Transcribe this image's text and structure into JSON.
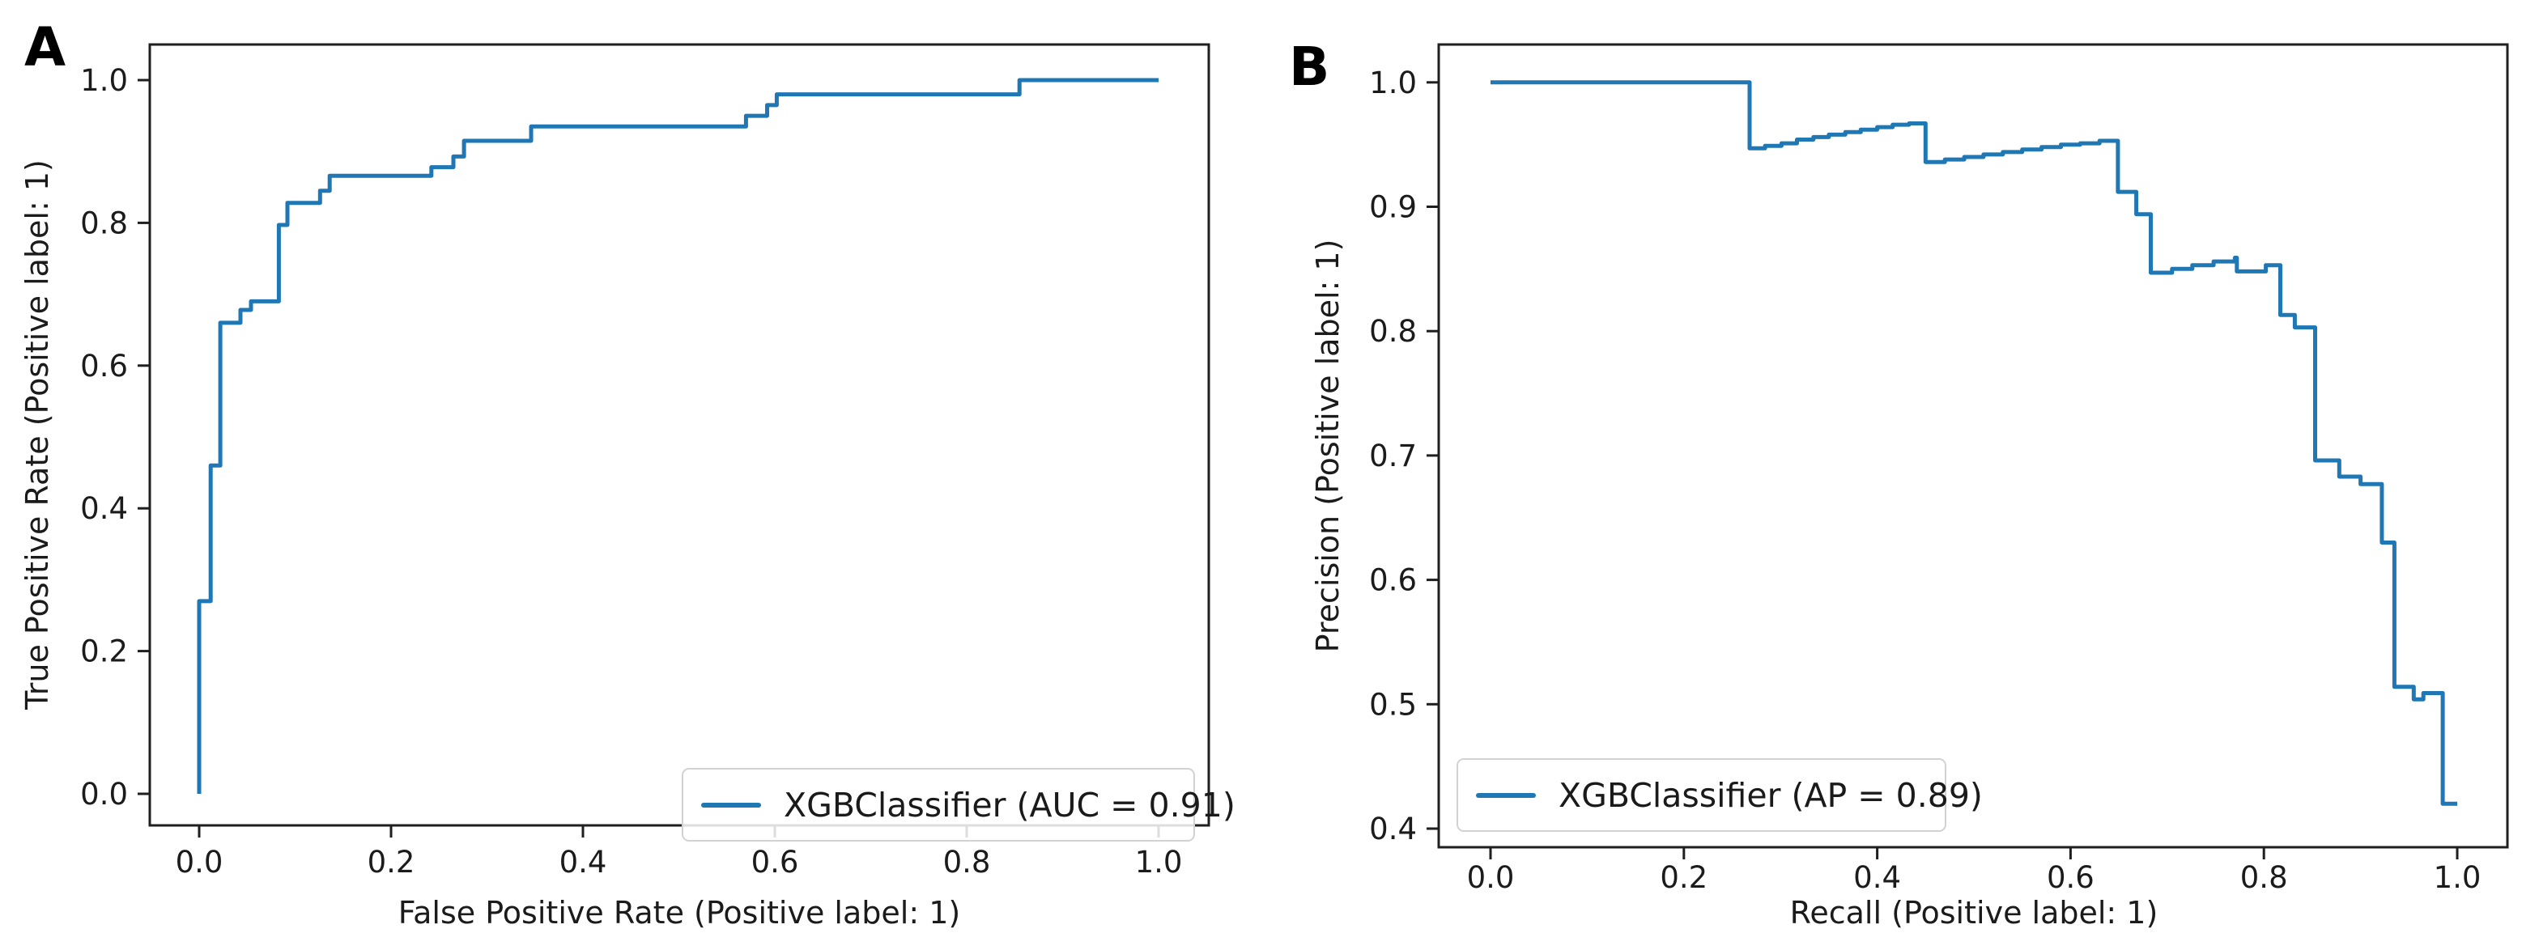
{
  "figure": {
    "background": "#ffffff",
    "panel_a_letter": "A",
    "panel_b_letter": "B"
  },
  "chart_data": [
    {
      "type": "line",
      "subtype": "roc-step-curve",
      "panel_label": "A",
      "title": "",
      "xlabel": "False Positive Rate (Positive label: 1)",
      "ylabel": "True Positive Rate (Positive label: 1)",
      "legend_label": "XGBClassifier (AUC = 0.91)",
      "classifier": "XGBClassifier",
      "metric_name": "AUC",
      "metric_value": 0.91,
      "color": "#1f77b4",
      "grid": "off",
      "legend_position": "lower right",
      "xlim": [
        -0.05,
        1.05
      ],
      "ylim": [
        -0.04,
        1.05
      ],
      "xticks": [
        0.0,
        0.2,
        0.4,
        0.6,
        0.8,
        1.0
      ],
      "xtick_labels": [
        "0.0",
        "0.2",
        "0.4",
        "0.6",
        "0.8",
        "1.0"
      ],
      "yticks": [
        0.0,
        0.2,
        0.4,
        0.6,
        0.8,
        1.0
      ],
      "ytick_labels": [
        "0.0",
        "0.2",
        "0.4",
        "0.6",
        "0.8",
        "1.0"
      ],
      "curve": [
        [
          0.0,
          0.0
        ],
        [
          0.0,
          0.27
        ],
        [
          0.012,
          0.27
        ],
        [
          0.012,
          0.46
        ],
        [
          0.022,
          0.46
        ],
        [
          0.022,
          0.66
        ],
        [
          0.043,
          0.66
        ],
        [
          0.043,
          0.678
        ],
        [
          0.054,
          0.678
        ],
        [
          0.054,
          0.69
        ],
        [
          0.083,
          0.69
        ],
        [
          0.083,
          0.797
        ],
        [
          0.092,
          0.797
        ],
        [
          0.092,
          0.828
        ],
        [
          0.126,
          0.828
        ],
        [
          0.126,
          0.845
        ],
        [
          0.136,
          0.845
        ],
        [
          0.136,
          0.866
        ],
        [
          0.242,
          0.866
        ],
        [
          0.242,
          0.878
        ],
        [
          0.265,
          0.878
        ],
        [
          0.265,
          0.893
        ],
        [
          0.276,
          0.893
        ],
        [
          0.276,
          0.915
        ],
        [
          0.346,
          0.915
        ],
        [
          0.346,
          0.935
        ],
        [
          0.57,
          0.935
        ],
        [
          0.57,
          0.95
        ],
        [
          0.592,
          0.95
        ],
        [
          0.592,
          0.965
        ],
        [
          0.602,
          0.965
        ],
        [
          0.602,
          0.98
        ],
        [
          0.855,
          0.98
        ],
        [
          0.855,
          1.0
        ],
        [
          1.0,
          1.0
        ]
      ]
    },
    {
      "type": "line",
      "subtype": "precision-recall-step-curve",
      "panel_label": "B",
      "title": "",
      "xlabel": "Recall (Positive label: 1)",
      "ylabel": "Precision (Positive label: 1)",
      "legend_label": "XGBClassifier (AP = 0.89)",
      "classifier": "XGBClassifier",
      "metric_name": "AP",
      "metric_value": 0.89,
      "color": "#1f77b4",
      "grid": "off",
      "legend_position": "lower left",
      "xlim": [
        -0.05,
        1.05
      ],
      "ylim": [
        0.385,
        1.03
      ],
      "xticks": [
        0.0,
        0.2,
        0.4,
        0.6,
        0.8,
        1.0
      ],
      "xtick_labels": [
        "0.0",
        "0.2",
        "0.4",
        "0.6",
        "0.8",
        "1.0"
      ],
      "yticks": [
        0.4,
        0.5,
        0.6,
        0.7,
        0.8,
        0.9,
        1.0
      ],
      "ytick_labels": [
        "0.4",
        "0.5",
        "0.6",
        "0.7",
        "0.8",
        "0.9",
        "1.0"
      ],
      "curve": [
        [
          0.0,
          1.0
        ],
        [
          0.268,
          1.0
        ],
        [
          0.268,
          0.947
        ],
        [
          0.284,
          0.947
        ],
        [
          0.284,
          0.949
        ],
        [
          0.301,
          0.949
        ],
        [
          0.301,
          0.951
        ],
        [
          0.317,
          0.951
        ],
        [
          0.317,
          0.954
        ],
        [
          0.334,
          0.954
        ],
        [
          0.334,
          0.956
        ],
        [
          0.35,
          0.956
        ],
        [
          0.35,
          0.958
        ],
        [
          0.367,
          0.958
        ],
        [
          0.367,
          0.96
        ],
        [
          0.383,
          0.96
        ],
        [
          0.383,
          0.962
        ],
        [
          0.4,
          0.962
        ],
        [
          0.4,
          0.964
        ],
        [
          0.416,
          0.964
        ],
        [
          0.416,
          0.966
        ],
        [
          0.433,
          0.966
        ],
        [
          0.433,
          0.967
        ],
        [
          0.45,
          0.967
        ],
        [
          0.45,
          0.936
        ],
        [
          0.47,
          0.936
        ],
        [
          0.47,
          0.938
        ],
        [
          0.49,
          0.938
        ],
        [
          0.49,
          0.94
        ],
        [
          0.51,
          0.94
        ],
        [
          0.51,
          0.942
        ],
        [
          0.53,
          0.942
        ],
        [
          0.53,
          0.944
        ],
        [
          0.55,
          0.944
        ],
        [
          0.55,
          0.946
        ],
        [
          0.57,
          0.946
        ],
        [
          0.57,
          0.948
        ],
        [
          0.59,
          0.948
        ],
        [
          0.59,
          0.95
        ],
        [
          0.61,
          0.95
        ],
        [
          0.61,
          0.951
        ],
        [
          0.63,
          0.951
        ],
        [
          0.63,
          0.953
        ],
        [
          0.649,
          0.953
        ],
        [
          0.649,
          0.912
        ],
        [
          0.668,
          0.912
        ],
        [
          0.668,
          0.894
        ],
        [
          0.683,
          0.894
        ],
        [
          0.683,
          0.847
        ],
        [
          0.705,
          0.847
        ],
        [
          0.705,
          0.85
        ],
        [
          0.726,
          0.85
        ],
        [
          0.726,
          0.853
        ],
        [
          0.748,
          0.853
        ],
        [
          0.748,
          0.856
        ],
        [
          0.77,
          0.856
        ],
        [
          0.77,
          0.859
        ],
        [
          0.772,
          0.859
        ],
        [
          0.772,
          0.848
        ],
        [
          0.802,
          0.848
        ],
        [
          0.802,
          0.853
        ],
        [
          0.817,
          0.853
        ],
        [
          0.817,
          0.813
        ],
        [
          0.832,
          0.813
        ],
        [
          0.832,
          0.803
        ],
        [
          0.853,
          0.803
        ],
        [
          0.853,
          0.696
        ],
        [
          0.878,
          0.696
        ],
        [
          0.878,
          0.683
        ],
        [
          0.9,
          0.683
        ],
        [
          0.9,
          0.677
        ],
        [
          0.922,
          0.677
        ],
        [
          0.922,
          0.63
        ],
        [
          0.935,
          0.63
        ],
        [
          0.935,
          0.514
        ],
        [
          0.955,
          0.514
        ],
        [
          0.955,
          0.504
        ],
        [
          0.965,
          0.504
        ],
        [
          0.965,
          0.509
        ],
        [
          0.985,
          0.509
        ],
        [
          0.985,
          0.42
        ],
        [
          1.0,
          0.42
        ]
      ]
    }
  ]
}
